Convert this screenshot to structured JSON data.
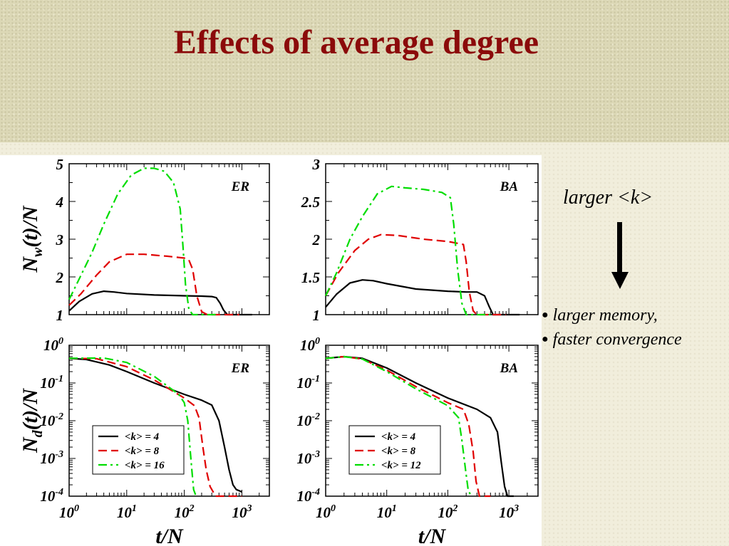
{
  "slide": {
    "title": "Effects of average degree",
    "side_heading": "larger <k>",
    "bullets": [
      "larger memory,",
      "faster convergence"
    ]
  },
  "colors": {
    "black": "#000000",
    "red": "#e00000",
    "green": "#00dd00",
    "title": "#8b0a0a"
  },
  "chart_data": [
    {
      "id": "er_nw",
      "type": "line",
      "network": "ER",
      "xscale": "log",
      "yscale": "linear",
      "xlim": [
        1,
        3000
      ],
      "ylim": [
        1,
        5
      ],
      "yticks": [
        "1",
        "2",
        "3",
        "4",
        "5"
      ],
      "xticks": [],
      "ylabel": "N_w(t)/N",
      "xlabel": "",
      "series": [
        {
          "name": "<k> = 4",
          "color": "black",
          "dash": "solid",
          "x": [
            1,
            1.5,
            2.5,
            4,
            6,
            10,
            30,
            100,
            200,
            300,
            360,
            420,
            480,
            560,
            1500
          ],
          "y": [
            1.1,
            1.35,
            1.55,
            1.62,
            1.6,
            1.56,
            1.52,
            1.5,
            1.49,
            1.48,
            1.45,
            1.3,
            1.12,
            1.0,
            1.0
          ]
        },
        {
          "name": "<k> = 8",
          "color": "red",
          "dash": "dashed",
          "x": [
            1,
            1.6,
            3,
            5,
            10,
            20,
            50,
            100,
            120,
            140,
            165,
            200,
            250,
            900
          ],
          "y": [
            1.25,
            1.55,
            2.05,
            2.4,
            2.6,
            2.6,
            2.55,
            2.5,
            2.45,
            2.2,
            1.5,
            1.08,
            1.0,
            1.0
          ]
        },
        {
          "name": "<k> = 16",
          "color": "green",
          "dash": "dashdot",
          "x": [
            1,
            1.5,
            2.5,
            4,
            7,
            12,
            20,
            30,
            45,
            65,
            85,
            95,
            105,
            120,
            140,
            400
          ],
          "y": [
            1.4,
            1.95,
            2.65,
            3.4,
            4.2,
            4.7,
            4.88,
            4.88,
            4.8,
            4.5,
            3.8,
            2.8,
            1.8,
            1.15,
            1.0,
            1.0
          ]
        }
      ],
      "annotation": "ER"
    },
    {
      "id": "ba_nw",
      "type": "line",
      "network": "BA",
      "xscale": "log",
      "yscale": "linear",
      "xlim": [
        1,
        3000
      ],
      "ylim": [
        1,
        3
      ],
      "yticks": [
        "1",
        "1.5",
        "2",
        "2.5",
        "3"
      ],
      "xticks": [],
      "ylabel": "",
      "xlabel": "",
      "series": [
        {
          "name": "<k> = 4",
          "color": "black",
          "dash": "solid",
          "x": [
            1,
            1.5,
            2.5,
            4,
            6,
            10,
            30,
            100,
            200,
            300,
            400,
            480,
            550,
            1500
          ],
          "y": [
            1.1,
            1.27,
            1.42,
            1.46,
            1.45,
            1.41,
            1.34,
            1.31,
            1.3,
            1.3,
            1.25,
            1.1,
            1.0,
            1.0
          ]
        },
        {
          "name": "<k> = 8",
          "color": "red",
          "dash": "dashed",
          "x": [
            1,
            1.6,
            3,
            5,
            8,
            15,
            40,
            100,
            180,
            200,
            225,
            260,
            300,
            900
          ],
          "y": [
            1.25,
            1.55,
            1.85,
            2.0,
            2.06,
            2.05,
            2.0,
            1.97,
            1.93,
            1.7,
            1.3,
            1.05,
            1.0,
            1.0
          ]
        },
        {
          "name": "<k> = 12",
          "color": "green",
          "dash": "dashdot",
          "x": [
            1,
            1.5,
            2.5,
            4,
            7,
            12,
            20,
            40,
            80,
            110,
            125,
            145,
            170,
            200,
            500
          ],
          "y": [
            1.25,
            1.55,
            2.0,
            2.3,
            2.6,
            2.7,
            2.68,
            2.66,
            2.62,
            2.55,
            2.2,
            1.6,
            1.15,
            1.0,
            1.0
          ]
        }
      ],
      "annotation": "BA"
    },
    {
      "id": "er_nd",
      "type": "line",
      "network": "ER",
      "xscale": "log",
      "yscale": "log",
      "xlim": [
        1,
        3000
      ],
      "ylim": [
        0.0001,
        1
      ],
      "yticks": [
        "10^0",
        "10^-1",
        "10^-2",
        "10^-3",
        "10^-4"
      ],
      "xticks": [
        "10^0",
        "10^1",
        "10^2",
        "10^3"
      ],
      "ylabel": "N_d(t)/N",
      "xlabel": "t/N",
      "series": [
        {
          "name": "<k> = 4",
          "color": "black",
          "dash": "solid",
          "x": [
            1,
            2,
            5,
            10,
            30,
            100,
            200,
            300,
            400,
            500,
            600,
            700,
            800,
            1000
          ],
          "y": [
            0.45,
            0.42,
            0.3,
            0.2,
            0.1,
            0.05,
            0.035,
            0.026,
            0.01,
            0.002,
            0.0005,
            0.0002,
            0.00015,
            0.00013
          ]
        },
        {
          "name": "<k> = 8",
          "color": "red",
          "dash": "dashed",
          "x": [
            1,
            3,
            10,
            30,
            100,
            150,
            180,
            210,
            240,
            280,
            350,
            600,
            1000
          ],
          "y": [
            0.45,
            0.44,
            0.27,
            0.12,
            0.04,
            0.025,
            0.012,
            0.002,
            0.0005,
            0.00018,
            0.0001,
            0.0001,
            0.0001
          ]
        },
        {
          "name": "<k> = 16",
          "color": "green",
          "dash": "dashdot",
          "x": [
            1,
            4,
            10,
            30,
            80,
            100,
            115,
            125,
            135,
            145,
            160
          ],
          "y": [
            0.45,
            0.46,
            0.35,
            0.15,
            0.05,
            0.03,
            0.01,
            0.002,
            0.0005,
            0.00015,
            0.0001
          ]
        }
      ],
      "legend": [
        "<k> = 4",
        "<k> = 8",
        "<k> = 16"
      ],
      "annotation": "ER"
    },
    {
      "id": "ba_nd",
      "type": "line",
      "network": "BA",
      "xscale": "log",
      "yscale": "log",
      "xlim": [
        1,
        3000
      ],
      "ylim": [
        0.0001,
        1
      ],
      "yticks": [
        "10^0",
        "10^-1",
        "10^-2",
        "10^-3",
        "10^-4"
      ],
      "xticks": [
        "10^0",
        "10^1",
        "10^2",
        "10^3"
      ],
      "ylabel": "",
      "xlabel": "t/N",
      "series": [
        {
          "name": "<k> = 4",
          "color": "black",
          "dash": "solid",
          "x": [
            1,
            2,
            4,
            10,
            30,
            100,
            300,
            500,
            650,
            750,
            850,
            950,
            1200
          ],
          "y": [
            0.45,
            0.5,
            0.45,
            0.25,
            0.1,
            0.04,
            0.02,
            0.012,
            0.005,
            0.0008,
            0.00018,
            0.0001,
            0.0001
          ]
        },
        {
          "name": "<k> = 8",
          "color": "red",
          "dash": "dashed",
          "x": [
            1,
            2,
            4,
            10,
            30,
            100,
            180,
            220,
            260,
            290,
            330,
            500
          ],
          "y": [
            0.45,
            0.5,
            0.43,
            0.22,
            0.08,
            0.03,
            0.02,
            0.008,
            0.0015,
            0.00025,
            0.0001,
            0.0001
          ]
        },
        {
          "name": "<k> = 12",
          "color": "green",
          "dash": "dashdot",
          "x": [
            1,
            2,
            4,
            10,
            30,
            100,
            150,
            170,
            195,
            215,
            240
          ],
          "y": [
            0.45,
            0.5,
            0.43,
            0.2,
            0.07,
            0.025,
            0.012,
            0.003,
            0.0005,
            0.00015,
            0.0001
          ]
        }
      ],
      "legend": [
        "<k> = 4",
        "<k> = 8",
        "<k> = 12"
      ],
      "annotation": "BA"
    }
  ]
}
